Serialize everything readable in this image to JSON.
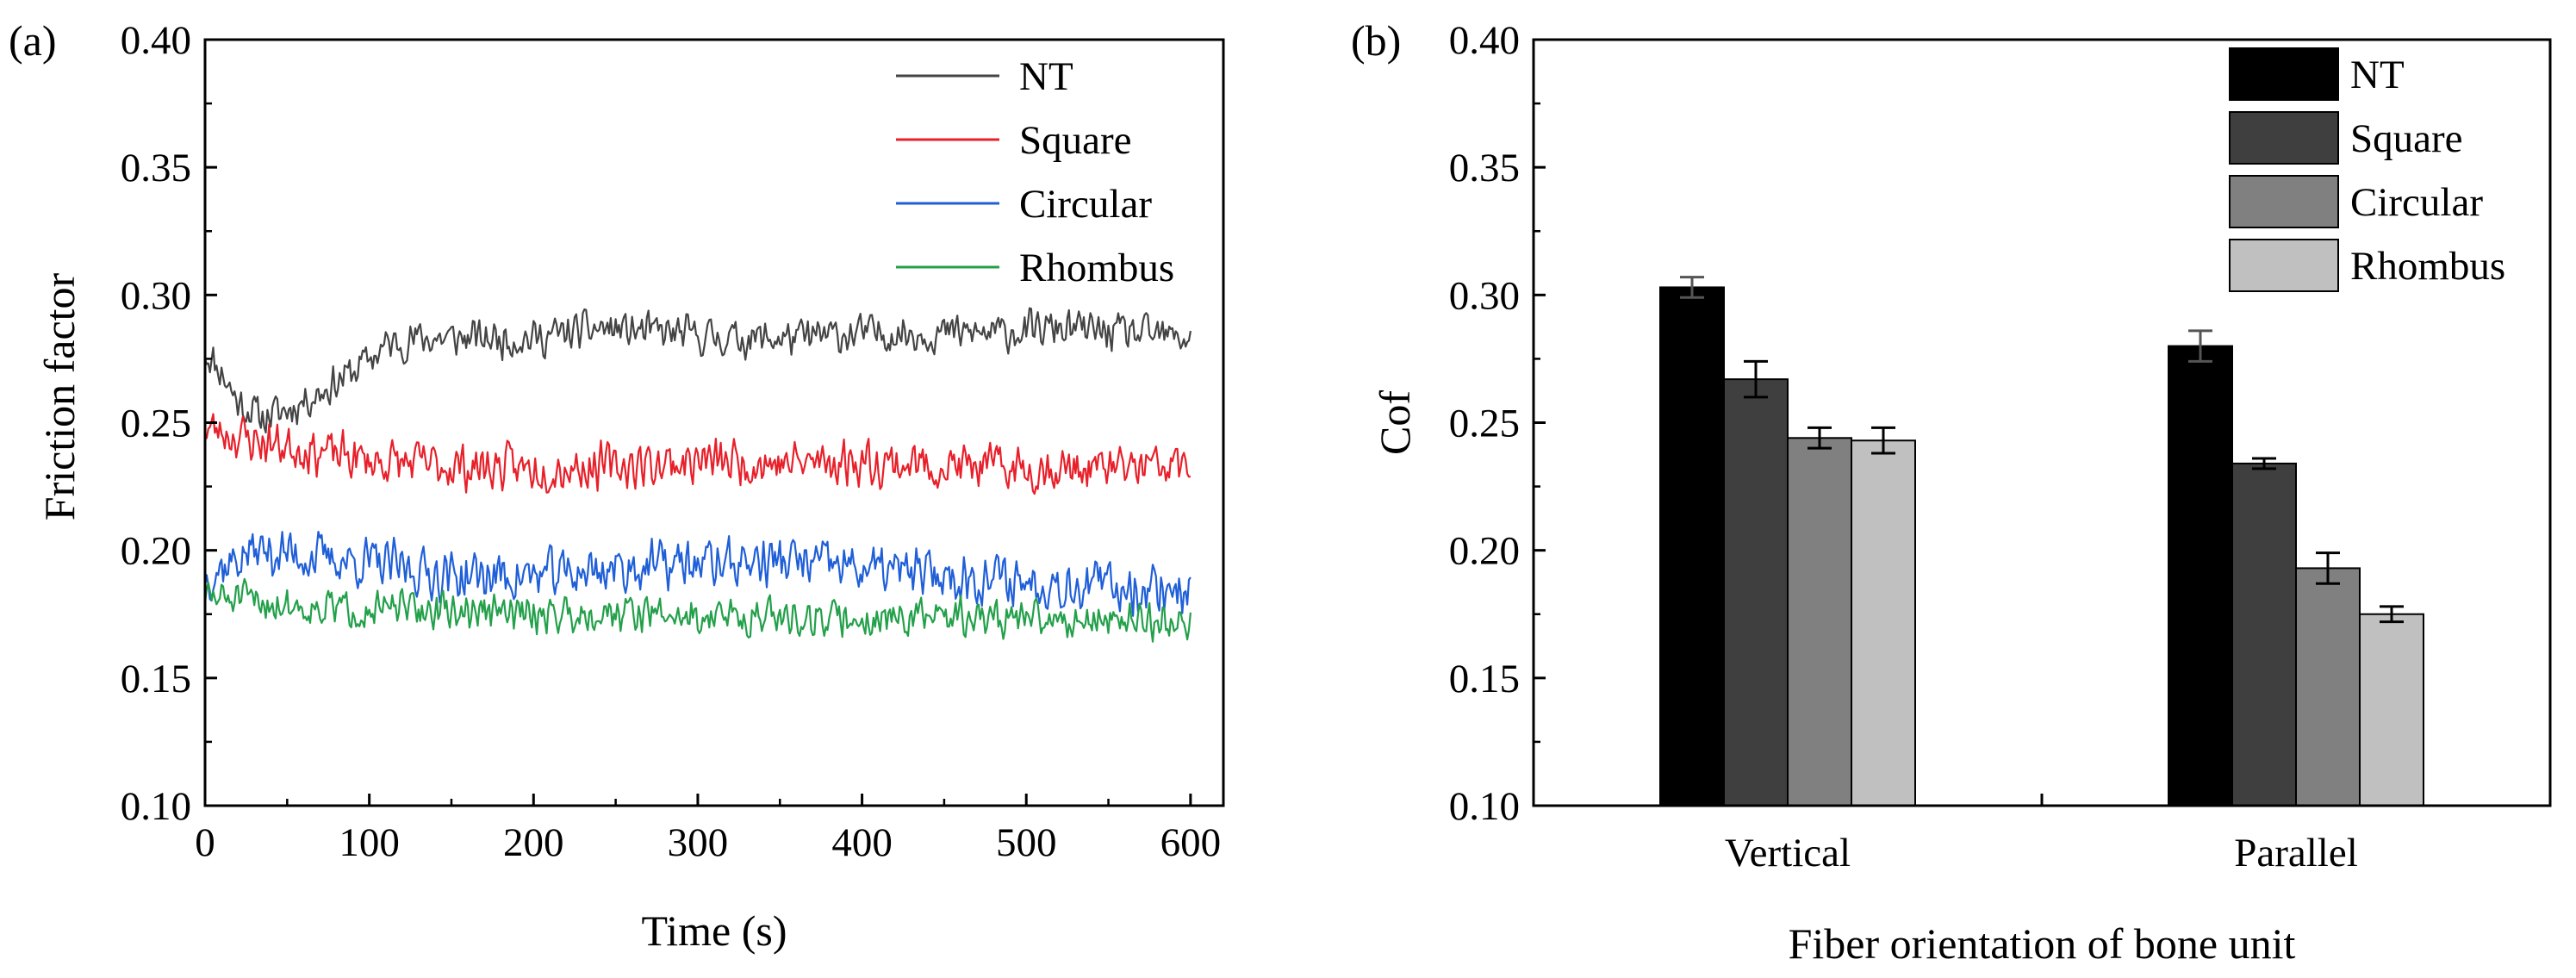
{
  "colors": {
    "NT_line": "#444444",
    "Square_line": "#e8202a",
    "Circular_line": "#1f5fd8",
    "Rhombus_line": "#23a04a",
    "NT_bar": "#000000",
    "Square_bar": "#3f3f3f",
    "Circular_bar": "#808080",
    "Rhombus_bar": "#c0c0c0",
    "axis": "#000000",
    "errorbar_light": "#555555"
  },
  "chart_data": [
    {
      "type": "line",
      "panel_label": "(a)",
      "title": "",
      "xlabel": "Time (s)",
      "ylabel": "Friction factor",
      "xlim": [
        0,
        620
      ],
      "ylim": [
        0.1,
        0.4
      ],
      "xticks": [
        "0",
        "100",
        "200",
        "300",
        "400",
        "500",
        "600"
      ],
      "yticks": [
        "0.10",
        "0.15",
        "0.20",
        "0.25",
        "0.30",
        "0.35",
        "0.40"
      ],
      "legend_position": "top-right",
      "x_range": [
        0,
        600
      ],
      "noise_step": 1,
      "series": [
        {
          "name": "NT",
          "color_key": "NT_line",
          "base_x": [
            0,
            10,
            20,
            35,
            50,
            70,
            90,
            110,
            130,
            160,
            200,
            240,
            280,
            320,
            360,
            400,
            440,
            480,
            520,
            560,
            600
          ],
          "base_y": [
            0.278,
            0.27,
            0.258,
            0.252,
            0.255,
            0.262,
            0.27,
            0.28,
            0.283,
            0.283,
            0.283,
            0.287,
            0.285,
            0.283,
            0.283,
            0.285,
            0.285,
            0.285,
            0.287,
            0.285,
            0.283
          ],
          "amplitude": 0.009,
          "seed": 11
        },
        {
          "name": "Square",
          "color_key": "Square_line",
          "base_x": [
            0,
            30,
            60,
            100,
            150,
            200,
            250,
            300,
            350,
            400,
            450,
            500,
            550,
            600
          ],
          "base_y": [
            0.248,
            0.243,
            0.24,
            0.235,
            0.233,
            0.232,
            0.233,
            0.235,
            0.234,
            0.235,
            0.233,
            0.232,
            0.232,
            0.233
          ],
          "amplitude": 0.011,
          "seed": 23
        },
        {
          "name": "Circular",
          "color_key": "Circular_line",
          "base_x": [
            0,
            30,
            60,
            100,
            150,
            200,
            250,
            300,
            350,
            400,
            450,
            500,
            550,
            600
          ],
          "base_y": [
            0.19,
            0.2,
            0.198,
            0.195,
            0.19,
            0.19,
            0.193,
            0.195,
            0.196,
            0.193,
            0.19,
            0.188,
            0.186,
            0.185
          ],
          "amplitude": 0.012,
          "seed": 37
        },
        {
          "name": "Rhombus",
          "color_key": "Rhombus_line",
          "base_x": [
            0,
            30,
            60,
            100,
            150,
            200,
            250,
            300,
            350,
            400,
            450,
            500,
            550,
            600
          ],
          "base_y": [
            0.182,
            0.18,
            0.178,
            0.177,
            0.176,
            0.175,
            0.176,
            0.174,
            0.174,
            0.173,
            0.174,
            0.173,
            0.173,
            0.172
          ],
          "amplitude": 0.009,
          "seed": 51
        }
      ]
    },
    {
      "type": "bar",
      "panel_label": "(b)",
      "title": "",
      "xlabel": "Fiber orientation of bone unit",
      "ylabel": "Cof",
      "ylim": [
        0.1,
        0.4
      ],
      "yticks": [
        "0.10",
        "0.15",
        "0.20",
        "0.25",
        "0.30",
        "0.35",
        "0.40"
      ],
      "categories": [
        "Vertical",
        "Parallel"
      ],
      "legend_position": "top-right",
      "series": [
        {
          "name": "NT",
          "color_key": "NT_bar",
          "values": [
            0.303,
            0.28
          ],
          "errors": [
            0.004,
            0.006
          ]
        },
        {
          "name": "Square",
          "color_key": "Square_bar",
          "values": [
            0.267,
            0.234
          ],
          "errors": [
            0.007,
            0.002
          ]
        },
        {
          "name": "Circular",
          "color_key": "Circular_bar",
          "values": [
            0.244,
            0.193
          ],
          "errors": [
            0.004,
            0.006
          ]
        },
        {
          "name": "Rhombus",
          "color_key": "Rhombus_bar",
          "values": [
            0.243,
            0.175
          ],
          "errors": [
            0.005,
            0.003
          ]
        }
      ]
    }
  ]
}
